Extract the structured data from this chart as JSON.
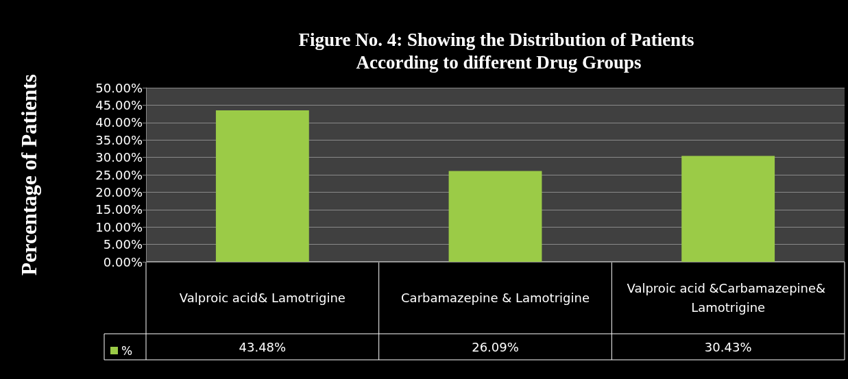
{
  "chart_data": {
    "type": "bar",
    "title": "Figure No. 4: Showing the Distribution of Patients According to different Drug Groups",
    "ylabel": "Percentage of Patients",
    "categories": [
      "Valproic acid& Lamotrigine",
      "Carbamazepine & Lamotrigine",
      "Valproic acid &Carbamazepine& Lamotrigine"
    ],
    "series": [
      {
        "name": "%",
        "color": "#9bcb47",
        "values": [
          43.48,
          26.09,
          30.43
        ],
        "value_labels": [
          "43.48%",
          "26.09%",
          "30.43%"
        ]
      }
    ],
    "ylim": [
      0,
      50
    ],
    "yticks": [
      {
        "value": 0,
        "label": "0.00%"
      },
      {
        "value": 5,
        "label": "5.00%"
      },
      {
        "value": 10,
        "label": "10.00%"
      },
      {
        "value": 15,
        "label": "15.00%"
      },
      {
        "value": 20,
        "label": "20.00%"
      },
      {
        "value": 25,
        "label": "25.00%"
      },
      {
        "value": 30,
        "label": "30.00%"
      },
      {
        "value": 35,
        "label": "35.00%"
      },
      {
        "value": 40,
        "label": "40.00%"
      },
      {
        "value": 45,
        "label": "45.00%"
      },
      {
        "value": 50,
        "label": "50.00%"
      }
    ],
    "grid": "y",
    "legend": "bottom left"
  }
}
